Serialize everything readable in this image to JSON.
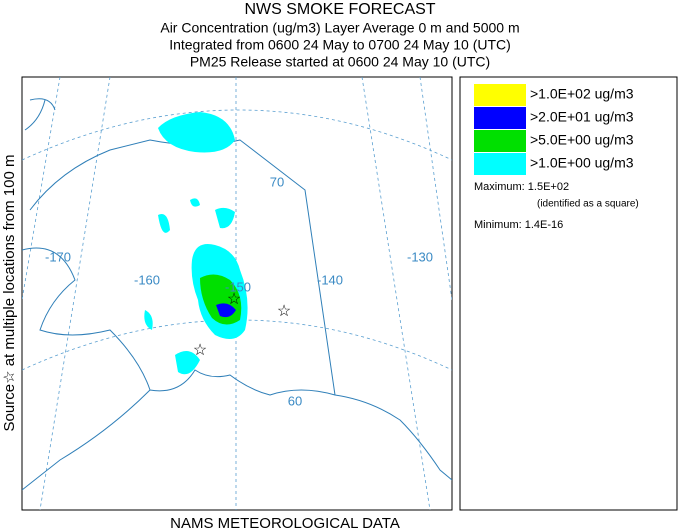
{
  "header": {
    "lines": [
      "NWS SMOKE FORECAST",
      "Air Concentration (ug/m3) Layer Average    0 m and  5000 m",
      "Integrated from 0600 24 May to 0700 24 May 10 (UTC)",
      "PM25 Release started at 0600 24 May 10 (UTC)"
    ]
  },
  "side_label": "Source☆ at multiple locations    from  100 m",
  "map": {
    "longitude_labels": [
      "-170",
      "-160",
      "-150",
      "-140",
      "-130"
    ],
    "latitude_labels": [
      "70",
      "60"
    ]
  },
  "legend": {
    "entries": [
      {
        "label": ">1.0E+02 ug/m3",
        "color": "#ffff00"
      },
      {
        "label": ">2.0E+01 ug/m3",
        "color": "#0000ff"
      },
      {
        "label": ">5.0E+00 ug/m3",
        "color": "#00e000"
      },
      {
        "label": ">1.0E+00 ug/m3",
        "color": "#00ffff"
      }
    ]
  },
  "stats": {
    "maximum": "Maximum: 1.5E+02",
    "maximum_note": "(identified as a square)",
    "minimum": "Minimum: 1.4E-16"
  },
  "footer": "NAMS METEOROLOGICAL DATA"
}
